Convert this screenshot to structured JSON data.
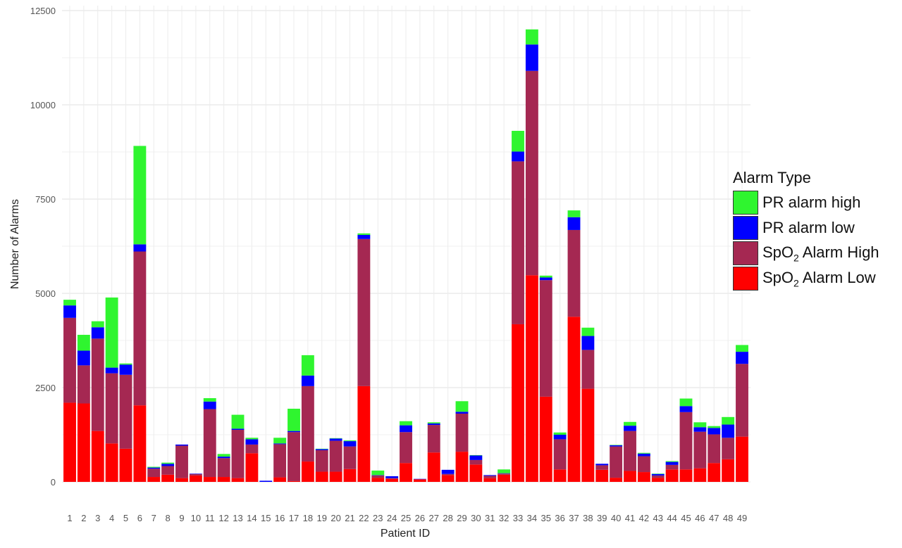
{
  "chart_data": {
    "type": "bar",
    "stacked": true,
    "title": "",
    "xlabel": "Patient ID",
    "ylabel": "Number of Alarms",
    "ylim": [
      0,
      12500
    ],
    "yticks": [
      "0",
      "2500",
      "5000",
      "7500",
      "10000",
      "12500"
    ],
    "grid": true,
    "legend_position": "right",
    "legend_title": "Alarm Type",
    "categories": [
      "1",
      "2",
      "3",
      "4",
      "5",
      "6",
      "7",
      "8",
      "9",
      "10",
      "11",
      "12",
      "13",
      "14",
      "15",
      "16",
      "17",
      "18",
      "19",
      "20",
      "21",
      "22",
      "23",
      "24",
      "25",
      "26",
      "27",
      "28",
      "29",
      "30",
      "31",
      "32",
      "33",
      "34",
      "35",
      "36",
      "37",
      "38",
      "39",
      "40",
      "41",
      "42",
      "43",
      "44",
      "45",
      "46",
      "47",
      "48",
      "49"
    ],
    "series": [
      {
        "name": "SpO2 Alarm Low",
        "label_main": "SpO",
        "label_sub": "2",
        "label_rest": " Alarm Low",
        "color": "#ff0000",
        "values": [
          2100,
          2080,
          1350,
          1020,
          880,
          2030,
          130,
          190,
          100,
          170,
          130,
          130,
          100,
          760,
          0,
          120,
          20,
          540,
          270,
          270,
          340,
          2540,
          110,
          80,
          500,
          70,
          780,
          180,
          800,
          460,
          100,
          190,
          4180,
          5480,
          2260,
          330,
          4380,
          2470,
          320,
          110,
          290,
          260,
          110,
          330,
          330,
          360,
          500,
          600,
          1200
        ]
      },
      {
        "name": "SpO2 Alarm High",
        "label_main": "SpO",
        "label_sub": "2",
        "label_rest": " Alarm High",
        "color": "#a52852",
        "values": [
          2250,
          1010,
          2450,
          1860,
          1960,
          4080,
          220,
          230,
          860,
          40,
          1800,
          500,
          1280,
          230,
          0,
          880,
          1300,
          2000,
          570,
          820,
          600,
          3900,
          60,
          20,
          820,
          0,
          730,
          30,
          1010,
          120,
          60,
          30,
          4320,
          5420,
          3090,
          800,
          2300,
          1030,
          120,
          830,
          1060,
          420,
          60,
          120,
          1520,
          970,
          760,
          570,
          1930
        ]
      },
      {
        "name": "PR alarm low",
        "label_main": "PR alarm low",
        "label_sub": "",
        "label_rest": "",
        "color": "#0000ff",
        "values": [
          330,
          390,
          300,
          150,
          270,
          190,
          30,
          60,
          30,
          10,
          200,
          40,
          30,
          140,
          30,
          20,
          30,
          280,
          30,
          60,
          140,
          110,
          10,
          50,
          180,
          10,
          40,
          110,
          50,
          120,
          20,
          10,
          260,
          700,
          70,
          120,
          340,
          370,
          40,
          30,
          140,
          70,
          40,
          80,
          160,
          120,
          170,
          350,
          320
        ]
      },
      {
        "name": "PR alarm high",
        "label_main": "PR alarm high",
        "label_sub": "",
        "label_rest": "",
        "color": "#2ff52f",
        "values": [
          150,
          420,
          160,
          1860,
          30,
          2610,
          20,
          30,
          0,
          0,
          90,
          70,
          370,
          40,
          0,
          150,
          590,
          540,
          10,
          10,
          20,
          40,
          120,
          0,
          110,
          0,
          30,
          0,
          280,
          10,
          0,
          100,
          550,
          400,
          50,
          60,
          180,
          220,
          0,
          10,
          100,
          20,
          10,
          20,
          200,
          130,
          50,
          200,
          180
        ]
      }
    ]
  }
}
